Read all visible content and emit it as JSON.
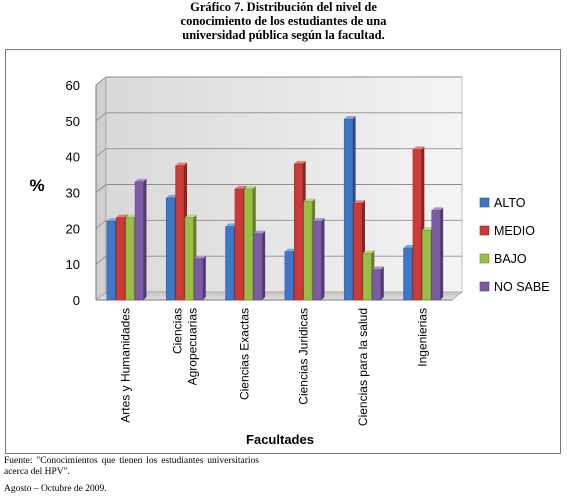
{
  "figure": {
    "title_lines": [
      "Gráfico 7. Distribución del nivel de",
      "conocimiento de los estudiantes de una",
      "universidad pública según la facultad."
    ],
    "source": "Fuente: \"Conocimientos que tienen los estudiantes universitarios acerca del HPV\".",
    "date": "Agosto – Octubre de 2009."
  },
  "chart_data": {
    "type": "bar",
    "xlabel": "Facultades",
    "ylabel": "%",
    "ylim": [
      0,
      60
    ],
    "yticks": [
      0,
      10,
      20,
      30,
      40,
      50,
      60
    ],
    "grid": true,
    "legend_position": "right",
    "categories": [
      [
        "Artes y Humanidades"
      ],
      [
        "Ciencias",
        "Agropecuarias"
      ],
      [
        "Ciencias Exactas"
      ],
      [
        "Ciencias Juridicas"
      ],
      [
        "Ciencias para la salud"
      ],
      [
        "Ingenierias"
      ]
    ],
    "series": [
      {
        "name": "ALTO",
        "color": "#3f77c8",
        "values": [
          22,
          28.5,
          20.5,
          13.5,
          50.5,
          14.5
        ]
      },
      {
        "name": "MEDIO",
        "color": "#cc3a36",
        "values": [
          23,
          37.5,
          31,
          38,
          27,
          42
        ]
      },
      {
        "name": "BAJO",
        "color": "#98be46",
        "values": [
          23,
          23,
          31,
          27.5,
          13,
          19.5
        ]
      },
      {
        "name": "NO SABE",
        "color": "#7b5aa6",
        "values": [
          33,
          11.5,
          18.5,
          22,
          8.5,
          25
        ]
      }
    ]
  }
}
